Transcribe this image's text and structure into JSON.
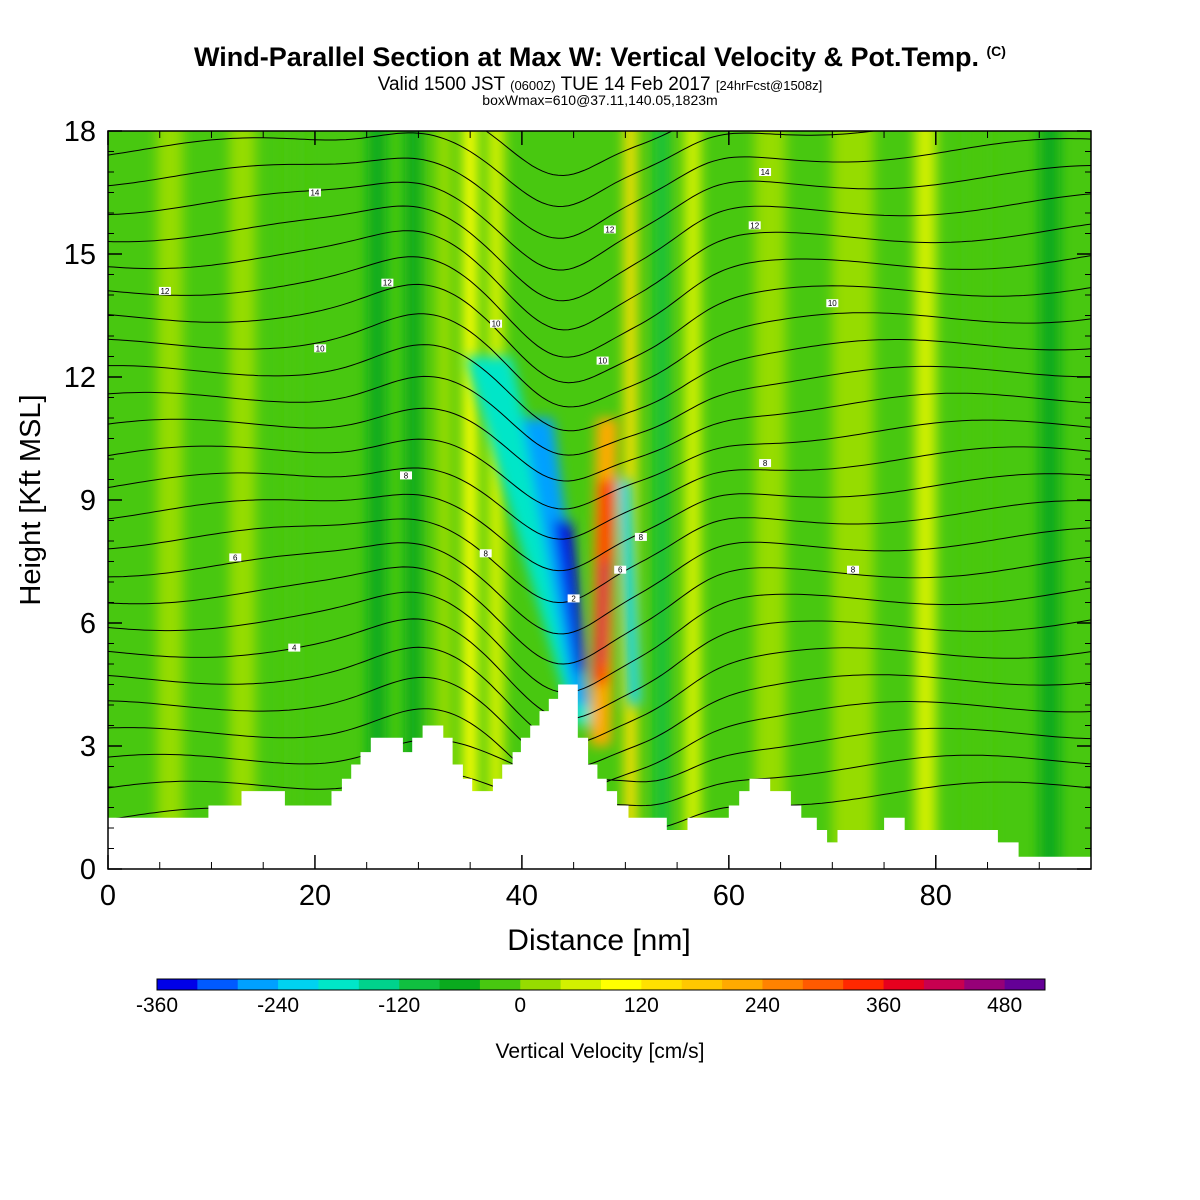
{
  "header": {
    "title": "Wind-Parallel Section at Max W: Vertical Velocity & Pot.Temp.",
    "copyright": "(C)",
    "valid_prefix": "Valid 1500 JST",
    "valid_utc": "(0600Z)",
    "valid_suffix": "TUE 14 Feb 2017",
    "forecast": "[24hrFcst@1508z]",
    "box_info": "boxWmax=610@37.11,140.05,1823m"
  },
  "chart_data": {
    "type": "heatmap",
    "xlabel": "Distance [nm]",
    "ylabel": "Height [Kft MSL]",
    "xlim": [
      0,
      95
    ],
    "ylim": [
      0,
      18
    ],
    "x_ticks": [
      "0",
      "20",
      "40",
      "60",
      "80"
    ],
    "y_ticks": [
      "0",
      "3",
      "6",
      "9",
      "12",
      "15",
      "18"
    ],
    "grid": false,
    "colorbar": {
      "label": "Vertical Velocity [cm/s]",
      "levels": [
        -360,
        -320,
        -280,
        -240,
        -200,
        -160,
        -120,
        -80,
        -40,
        0,
        40,
        80,
        120,
        160,
        200,
        240,
        280,
        320,
        360,
        400,
        440,
        480,
        520
      ],
      "tick_labels": [
        "-360",
        "-240",
        "-120",
        "0",
        "120",
        "240",
        "360",
        "480"
      ],
      "colors": [
        "#0000e8",
        "#005aff",
        "#00a0ff",
        "#00d2f0",
        "#00e6c8",
        "#00d28c",
        "#10c040",
        "#0aaa1e",
        "#48c810",
        "#96dc00",
        "#d2f000",
        "#ffff00",
        "#ffe100",
        "#ffc800",
        "#ffaa00",
        "#ff8200",
        "#ff5a00",
        "#ff2800",
        "#e6001e",
        "#c80050",
        "#960078",
        "#640096"
      ]
    },
    "theta_contour_labels": [
      {
        "x": 5.5,
        "y": 14.1,
        "label": "12"
      },
      {
        "x": 20,
        "y": 16.5,
        "label": "14"
      },
      {
        "x": 20.5,
        "y": 12.7,
        "label": "10"
      },
      {
        "x": 27,
        "y": 14.3,
        "label": "12"
      },
      {
        "x": 37.5,
        "y": 13.3,
        "label": "10"
      },
      {
        "x": 48.5,
        "y": 15.6,
        "label": "12"
      },
      {
        "x": 47.8,
        "y": 12.4,
        "label": "10"
      },
      {
        "x": 12.3,
        "y": 7.6,
        "label": "6"
      },
      {
        "x": 18,
        "y": 5.4,
        "label": "4"
      },
      {
        "x": 28.8,
        "y": 9.6,
        "label": "8"
      },
      {
        "x": 36.5,
        "y": 7.7,
        "label": "8"
      },
      {
        "x": 45,
        "y": 6.6,
        "label": "2"
      },
      {
        "x": 49.5,
        "y": 7.3,
        "label": "6"
      },
      {
        "x": 51.5,
        "y": 8.1,
        "label": "8"
      },
      {
        "x": 63.5,
        "y": 17.0,
        "label": "14"
      },
      {
        "x": 62.5,
        "y": 15.7,
        "label": "12"
      },
      {
        "x": 70,
        "y": 13.8,
        "label": "10"
      },
      {
        "x": 63.5,
        "y": 9.9,
        "label": "8"
      },
      {
        "x": 72,
        "y": 7.3,
        "label": "8"
      }
    ],
    "terrain_profile": [
      [
        0,
        1.25
      ],
      [
        9.7,
        1.25
      ],
      [
        9.7,
        1.55
      ],
      [
        12.9,
        1.55
      ],
      [
        12.9,
        1.9
      ],
      [
        17.1,
        1.9
      ],
      [
        17.1,
        1.55
      ],
      [
        21.6,
        1.55
      ],
      [
        21.6,
        1.9
      ],
      [
        22.6,
        1.9
      ],
      [
        22.6,
        2.2
      ],
      [
        23.5,
        2.2
      ],
      [
        23.5,
        2.55
      ],
      [
        24.4,
        2.55
      ],
      [
        24.4,
        2.85
      ],
      [
        25.4,
        2.85
      ],
      [
        25.4,
        3.2
      ],
      [
        28.5,
        3.2
      ],
      [
        28.5,
        2.85
      ],
      [
        29.4,
        2.85
      ],
      [
        29.4,
        3.2
      ],
      [
        30.4,
        3.2
      ],
      [
        30.4,
        3.5
      ],
      [
        32.4,
        3.5
      ],
      [
        32.4,
        3.2
      ],
      [
        33.3,
        3.2
      ],
      [
        33.3,
        2.55
      ],
      [
        34.3,
        2.55
      ],
      [
        34.3,
        2.2
      ],
      [
        35.2,
        2.2
      ],
      [
        35.2,
        1.9
      ],
      [
        37.2,
        1.9
      ],
      [
        37.2,
        2.2
      ],
      [
        38.1,
        2.2
      ],
      [
        38.1,
        2.55
      ],
      [
        39.1,
        2.55
      ],
      [
        39.1,
        2.85
      ],
      [
        39.9,
        2.85
      ],
      [
        39.9,
        3.2
      ],
      [
        40.8,
        3.2
      ],
      [
        40.8,
        3.5
      ],
      [
        41.7,
        3.5
      ],
      [
        41.7,
        3.85
      ],
      [
        42.6,
        3.85
      ],
      [
        42.6,
        4.15
      ],
      [
        43.5,
        4.15
      ],
      [
        43.5,
        4.5
      ],
      [
        45.4,
        4.5
      ],
      [
        45.4,
        3.2
      ],
      [
        46.4,
        3.2
      ],
      [
        46.4,
        2.55
      ],
      [
        47.3,
        2.55
      ],
      [
        47.3,
        2.2
      ],
      [
        48.2,
        2.2
      ],
      [
        48.2,
        1.9
      ],
      [
        49.2,
        1.9
      ],
      [
        49.2,
        1.55
      ],
      [
        50.3,
        1.55
      ],
      [
        50.3,
        1.25
      ],
      [
        54,
        1.25
      ],
      [
        54,
        0.95
      ],
      [
        56,
        0.95
      ],
      [
        56,
        1.25
      ],
      [
        60,
        1.25
      ],
      [
        60,
        1.55
      ],
      [
        61,
        1.55
      ],
      [
        61,
        1.9
      ],
      [
        62,
        1.9
      ],
      [
        62,
        2.2
      ],
      [
        64,
        2.2
      ],
      [
        64,
        1.9
      ],
      [
        66,
        1.9
      ],
      [
        66,
        1.55
      ],
      [
        67,
        1.55
      ],
      [
        67,
        1.25
      ],
      [
        68.5,
        1.25
      ],
      [
        68.5,
        0.95
      ],
      [
        69.5,
        0.95
      ],
      [
        69.5,
        0.65
      ],
      [
        70.5,
        0.65
      ],
      [
        70.5,
        0.95
      ],
      [
        75,
        0.95
      ],
      [
        75,
        1.25
      ],
      [
        77,
        1.25
      ],
      [
        77,
        0.95
      ],
      [
        86,
        0.95
      ],
      [
        86,
        0.65
      ],
      [
        88,
        0.65
      ],
      [
        88,
        0.3
      ],
      [
        95,
        0.3
      ]
    ],
    "w_bands": [
      {
        "x": 6,
        "color": "#96dc00",
        "w": 2.5
      },
      {
        "x": 13,
        "color": "#96dc00",
        "w": 2.5
      },
      {
        "x": 18,
        "color": "#48c810",
        "w": 2
      },
      {
        "x": 26,
        "color": "#0aaa1e",
        "w": 1.8
      },
      {
        "x": 29.5,
        "color": "#0aaa1e",
        "w": 1.6
      },
      {
        "x": 32.5,
        "color": "#96dc00",
        "w": 1.6
      },
      {
        "x": 35,
        "color": "#ffff00",
        "w": 1.4
      },
      {
        "x": 37.5,
        "color": "#d2f000",
        "w": 1.6
      },
      {
        "x": 50.5,
        "color": "#ffe100",
        "w": 1.2
      },
      {
        "x": 53.5,
        "color": "#10c040",
        "w": 1.2
      },
      {
        "x": 56.5,
        "color": "#d2f000",
        "w": 1.6
      },
      {
        "x": 64,
        "color": "#96dc00",
        "w": 3
      },
      {
        "x": 72,
        "color": "#96dc00",
        "w": 4
      },
      {
        "x": 79,
        "color": "#d2f000",
        "w": 2
      },
      {
        "x": 84,
        "color": "#48c810",
        "w": 3
      },
      {
        "x": 91,
        "color": "#0aaa1e",
        "w": 2
      }
    ]
  }
}
